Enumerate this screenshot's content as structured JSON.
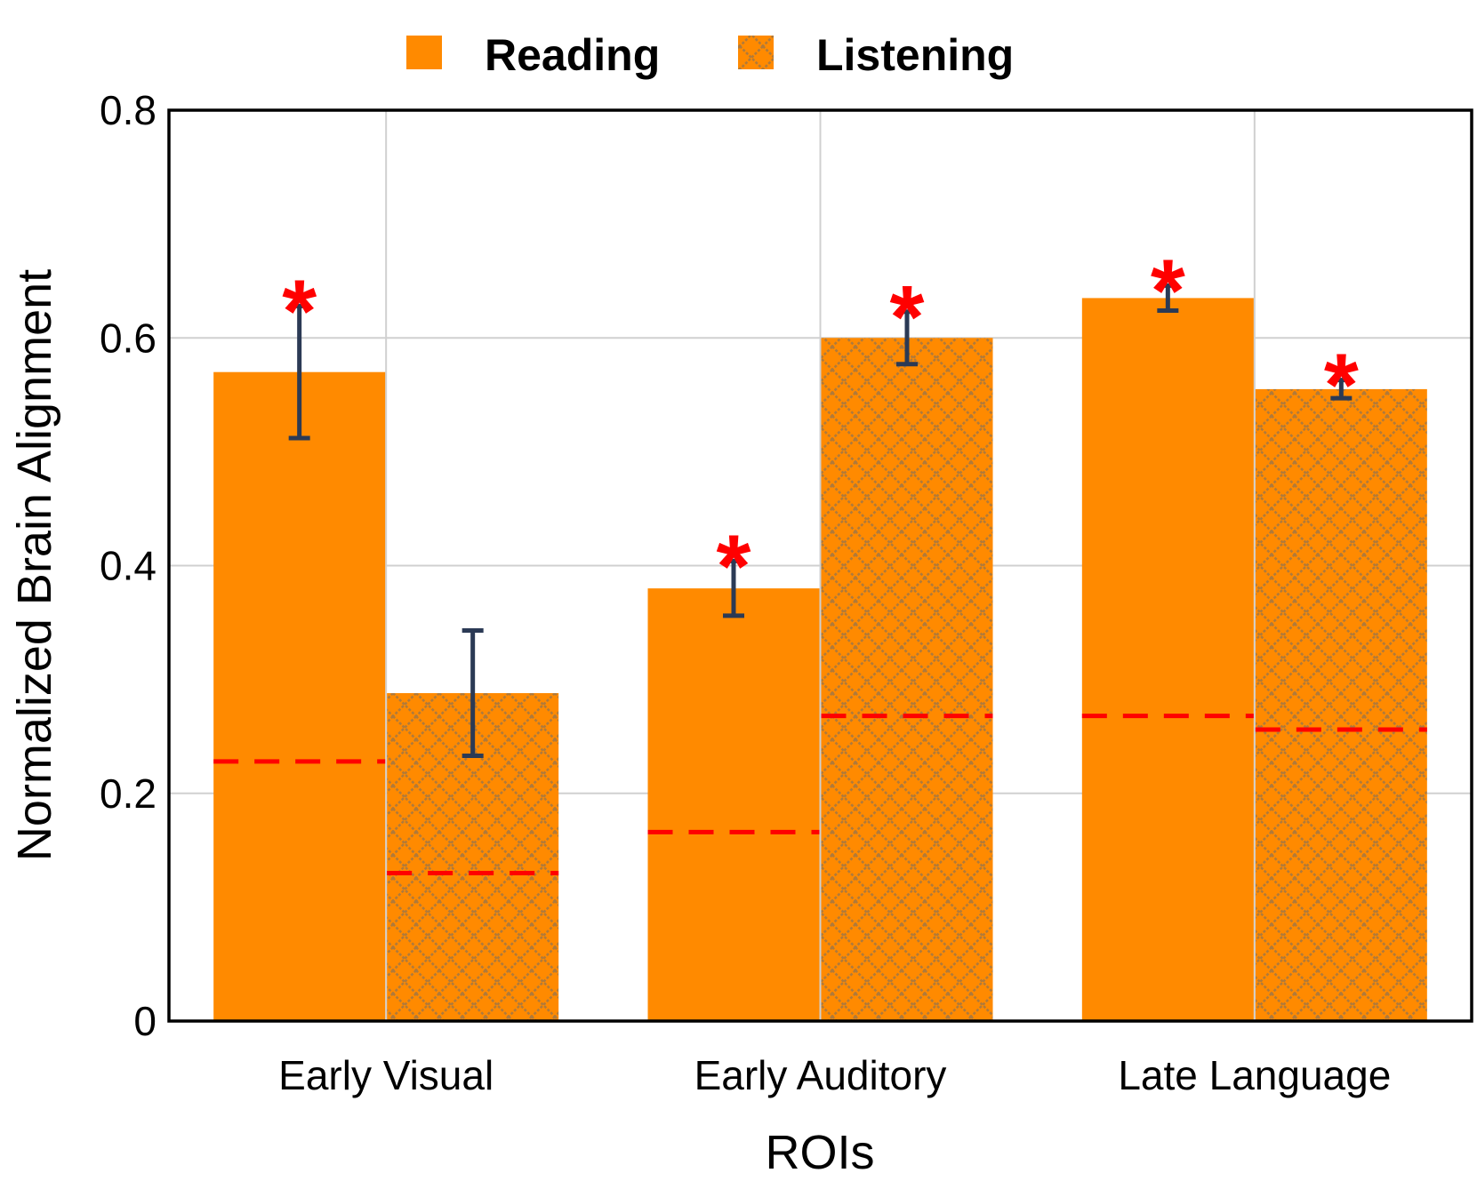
{
  "chart_data": {
    "type": "bar",
    "title": "",
    "xlabel": "ROIs",
    "ylabel": "Normalized Brain Alignment",
    "ylim": [
      0,
      0.8
    ],
    "yticks": [
      0,
      0.2,
      0.4,
      0.6,
      0.8
    ],
    "ytick_labels": [
      "0",
      "0.2",
      "0.4",
      "0.6",
      "0.8"
    ],
    "categories": [
      "Early Visual",
      "Early Auditory",
      "Late Language"
    ],
    "grid": true,
    "legend_position": "top-center",
    "series": [
      {
        "name": "Reading",
        "pattern": "solid",
        "values": [
          0.57,
          0.38,
          0.635
        ],
        "errors": [
          0.058,
          0.024,
          0.011
        ],
        "baseline": [
          0.228,
          0.166,
          0.268
        ],
        "significant": [
          true,
          true,
          true
        ]
      },
      {
        "name": "Listening",
        "pattern": "crosshatch",
        "values": [
          0.288,
          0.6,
          0.555
        ],
        "errors": [
          0.055,
          0.023,
          0.008
        ],
        "baseline": [
          0.13,
          0.268,
          0.256
        ],
        "significant": [
          false,
          true,
          true
        ]
      }
    ],
    "significance_marker": "*"
  },
  "colors": {
    "bar": "#ff8a00",
    "hatch": "#b07a3a",
    "error_bar": "#2b3a55",
    "baseline": "#ff0000",
    "star": "#ff0000",
    "grid": "#d0d0d0",
    "axis": "#000000"
  }
}
